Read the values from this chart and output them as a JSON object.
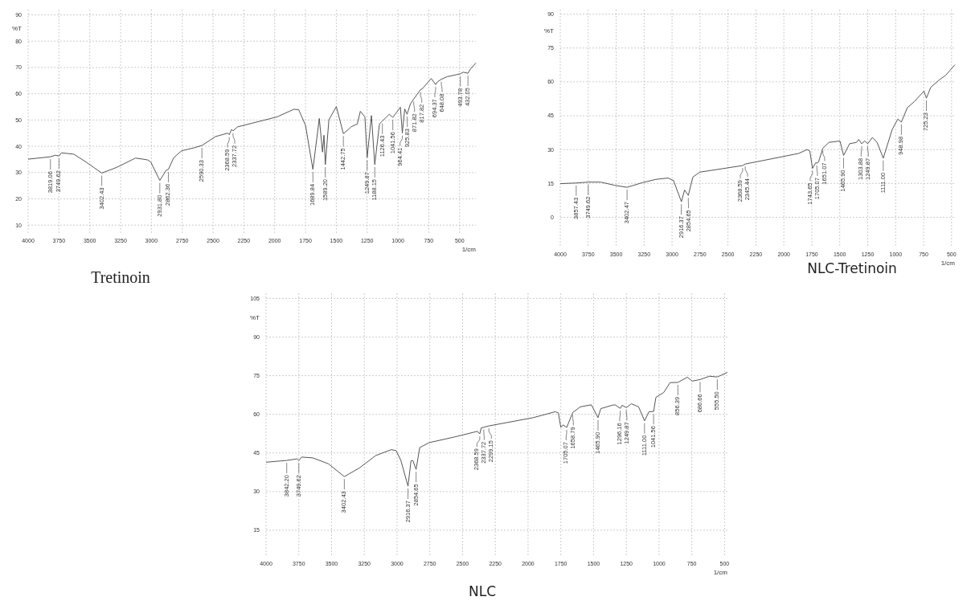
{
  "chart_data": [
    {
      "type": "line",
      "title": "Tretinoin",
      "xlabel": "1/cm",
      "ylabel": "%T",
      "xlim": [
        4000,
        368
      ],
      "xticks": [
        4000,
        3750,
        3500,
        3250,
        3000,
        2750,
        2500,
        2250,
        2000,
        1750,
        1500,
        1250,
        1000,
        750,
        500
      ],
      "ylim": [
        7,
        92
      ],
      "yticks": [
        10,
        20,
        30,
        40,
        50,
        60,
        70,
        80,
        90
      ],
      "grid": true,
      "series": [
        {
          "color": "#555555",
          "x": [
            4000,
            3819.06,
            3780,
            3749.62,
            3730,
            3630,
            3530,
            3402.43,
            3280,
            3130,
            3067,
            3030,
            3005,
            2931.8,
            2880,
            2862.36,
            2818,
            2755,
            2655,
            2590.33,
            2480,
            2380,
            2368.59,
            2350,
            2337.72,
            2300,
            1980,
            1843,
            1805,
            1750,
            1689.84,
            1638,
            1612,
            1600,
            1589.2,
            1560,
            1500,
            1442.75,
            1400,
            1380,
            1330,
            1305,
            1268,
            1249.87,
            1215,
            1188.15,
            1150,
            1126.43,
            1070,
            1041.56,
            1010,
            980,
            964.41,
            945,
            925.83,
            900,
            871.82,
            817.82,
            800,
            730,
            694.37,
            680,
            648.08,
            600,
            530,
            493.78,
            470,
            432.05,
            410,
            368
          ],
          "values": [
            35.1,
            36,
            36.6,
            36.3,
            37.5,
            37,
            34,
            29.8,
            32,
            35.5,
            35.1,
            34.8,
            34,
            27,
            30.9,
            31.2,
            35.7,
            38.3,
            39.4,
            40.3,
            43.7,
            45,
            44.4,
            46.4,
            45.9,
            47.4,
            51.2,
            54.1,
            53.9,
            48,
            31.2,
            50.6,
            37.8,
            44.2,
            33,
            50.1,
            55.1,
            44.8,
            46.5,
            47.4,
            48.5,
            53.3,
            51.2,
            35.7,
            51.7,
            33,
            48.5,
            49.6,
            52.2,
            51,
            53,
            54.9,
            45,
            54.2,
            52.2,
            56,
            58,
            61.5,
            62,
            65.8,
            63.5,
            64.5,
            65.5,
            66.5,
            67.2,
            67.6,
            68.2,
            67.8,
            69.5,
            71.7
          ]
        }
      ],
      "annotations": [
        {
          "text": "3819.06",
          "x": 3819.06,
          "y": 36
        },
        {
          "text": "3749.62",
          "x": 3749.62,
          "y": 36.3
        },
        {
          "text": "3402.43",
          "x": 3402.43,
          "y": 29.8
        },
        {
          "text": "2931.80",
          "x": 2931.8,
          "y": 27
        },
        {
          "text": "2862.36",
          "x": 2862.36,
          "y": 31.2
        },
        {
          "text": "2590.33",
          "x": 2590.33,
          "y": 40.3
        },
        {
          "text": "2368.59",
          "x": 2368.59,
          "y": 44.4
        },
        {
          "text": "2337.72",
          "x": 2337.72,
          "y": 45.9
        },
        {
          "text": "1689.84",
          "x": 1689.84,
          "y": 31.2
        },
        {
          "text": "1589.20",
          "x": 1589.2,
          "y": 33
        },
        {
          "text": "1442.75",
          "x": 1442.75,
          "y": 44.8
        },
        {
          "text": "1249.87",
          "x": 1249.87,
          "y": 35.7
        },
        {
          "text": "1188.15",
          "x": 1188.15,
          "y": 33
        },
        {
          "text": "1126.43",
          "x": 1126.43,
          "y": 49.6
        },
        {
          "text": "1041.56",
          "x": 1041.56,
          "y": 51
        },
        {
          "text": "964.41",
          "x": 964.41,
          "y": 45
        },
        {
          "text": "925.83",
          "x": 925.83,
          "y": 52.2
        },
        {
          "text": "871.82",
          "x": 871.82,
          "y": 58
        },
        {
          "text": "817.82",
          "x": 817.82,
          "y": 61.5
        },
        {
          "text": "694.37",
          "x": 694.37,
          "y": 63.5
        },
        {
          "text": "648.08",
          "x": 648.08,
          "y": 65.5
        },
        {
          "text": "493.78",
          "x": 493.78,
          "y": 67.6
        },
        {
          "text": "432.05",
          "x": 432.05,
          "y": 67.8
        }
      ]
    },
    {
      "type": "line",
      "title": "NLC-Tretinoin",
      "xlabel": "1/cm",
      "ylabel": "%T",
      "xlim": [
        4000,
        470
      ],
      "xticks": [
        4000,
        3750,
        3500,
        3250,
        3000,
        2750,
        2500,
        2250,
        2000,
        1750,
        1500,
        1250,
        1000,
        750,
        500
      ],
      "ylim": [
        -13,
        92
      ],
      "yticks": [
        0,
        15,
        30,
        45,
        60,
        75,
        90
      ],
      "grid": true,
      "series": [
        {
          "color": "#555555",
          "x": [
            4000,
            3857.43,
            3749.62,
            3638,
            3515,
            3402.47,
            3269,
            3146,
            3036,
            2987,
            2916.37,
            2888,
            2854.65,
            2814,
            2753,
            2372,
            2368.59,
            2360,
            2345.44,
            1867,
            1793,
            1768,
            1743.65,
            1715,
            1705.07,
            1690,
            1651.07,
            1597,
            1498,
            1465.9,
            1412,
            1350,
            1331,
            1303.88,
            1277,
            1249.87,
            1208,
            1166,
            1111,
            1030,
            981,
            948.98,
            895,
            834,
            747,
            725.23,
            686,
            612,
            551,
            470
          ],
          "values": [
            14.9,
            15.2,
            15.6,
            15.6,
            14.2,
            13.3,
            15.3,
            16.8,
            17.4,
            16.3,
            6.9,
            12.1,
            9.7,
            17.8,
            20,
            22.9,
            22.9,
            23.2,
            23.6,
            28.3,
            30,
            29.4,
            21.7,
            24.2,
            24,
            24.5,
            30.6,
            33.2,
            33.8,
            27.4,
            32.6,
            33.2,
            34.5,
            32.6,
            33.8,
            32.6,
            35.4,
            33.2,
            26.2,
            39,
            43.5,
            42.2,
            48.6,
            51.2,
            55.9,
            52.8,
            57.6,
            60.8,
            63,
            67.6
          ]
        }
      ],
      "annotations": [
        {
          "text": "3857.43",
          "x": 3857.43,
          "y": 15.2
        },
        {
          "text": "3749.62",
          "x": 3749.62,
          "y": 15.6
        },
        {
          "text": "3402.47",
          "x": 3402.47,
          "y": 13.3
        },
        {
          "text": "2916.37",
          "x": 2916.37,
          "y": 6.9
        },
        {
          "text": "2854.65",
          "x": 2854.65,
          "y": 9.7
        },
        {
          "text": "2368.59",
          "x": 2368.59,
          "y": 22.9
        },
        {
          "text": "2345.44",
          "x": 2345.44,
          "y": 23.6
        },
        {
          "text": "1743.65",
          "x": 1743.65,
          "y": 21.7
        },
        {
          "text": "1705.07",
          "x": 1705.07,
          "y": 24
        },
        {
          "text": "1651.07",
          "x": 1651.07,
          "y": 30.6
        },
        {
          "text": "1465.90",
          "x": 1465.9,
          "y": 27.4
        },
        {
          "text": "1303.88",
          "x": 1303.88,
          "y": 32.6
        },
        {
          "text": "1249.87",
          "x": 1249.87,
          "y": 32.6
        },
        {
          "text": "1111.00",
          "x": 1111,
          "y": 26.2
        },
        {
          "text": "948.98",
          "x": 948.98,
          "y": 42.2
        },
        {
          "text": "725.23",
          "x": 725.23,
          "y": 52.8
        }
      ]
    },
    {
      "type": "line",
      "title": "NLC",
      "xlabel": "1/cm",
      "ylabel": "%T",
      "xlim": [
        4000,
        478
      ],
      "xticks": [
        4000,
        3750,
        3500,
        3250,
        3000,
        2750,
        2500,
        2250,
        2000,
        1750,
        1500,
        1250,
        1000,
        750,
        500
      ],
      "ylim": [
        5,
        107
      ],
      "yticks": [
        15,
        30,
        45,
        60,
        75,
        90,
        105
      ],
      "grid": true,
      "series": [
        {
          "color": "#555555",
          "x": [
            4000,
            3842.2,
            3764,
            3749.62,
            3728,
            3644,
            3524,
            3402.43,
            3284,
            3163,
            3043,
            3007,
            2971,
            2916.37,
            2894,
            2880,
            2854.65,
            2827,
            2755,
            2562,
            2387,
            2368.59,
            2358,
            2337.72,
            2299.15,
            1961,
            1793,
            1769,
            1750,
            1733,
            1705.07,
            1658.79,
            1601,
            1517,
            1465.9,
            1445,
            1360,
            1336,
            1296.16,
            1283,
            1249.87,
            1211,
            1156,
            1111,
            1077,
            1041.56,
            1024,
            964,
            916,
            856.39,
            784,
            747,
            686.66,
            615,
            555.5,
            478
          ],
          "values": [
            41.4,
            42.1,
            42.7,
            42.1,
            43.4,
            43.1,
            40.8,
            35.8,
            39.3,
            44,
            46.3,
            45.9,
            42.1,
            32.1,
            41.9,
            42.1,
            38.6,
            47.1,
            49,
            51.2,
            53.4,
            52.4,
            54.7,
            55,
            55.5,
            58.7,
            61,
            60.6,
            54.9,
            55.9,
            54.9,
            60.7,
            62.9,
            63.7,
            58.7,
            62.2,
            63.5,
            63.7,
            62.3,
            63.5,
            62.6,
            64.1,
            62.9,
            57.5,
            61,
            61.1,
            66.6,
            68.5,
            72.3,
            72.4,
            74.4,
            72.9,
            73.5,
            74.8,
            74.5,
            76.3
          ]
        }
      ],
      "annotations": [
        {
          "text": "3842.20",
          "x": 3842.2,
          "y": 42.1
        },
        {
          "text": "3749.62",
          "x": 3749.62,
          "y": 42.1
        },
        {
          "text": "3402.43",
          "x": 3402.43,
          "y": 35.8
        },
        {
          "text": "2916.37",
          "x": 2916.37,
          "y": 32.1
        },
        {
          "text": "2854.65",
          "x": 2854.65,
          "y": 38.6
        },
        {
          "text": "2368.59",
          "x": 2368.59,
          "y": 52.4
        },
        {
          "text": "2337.72",
          "x": 2337.72,
          "y": 55
        },
        {
          "text": "2299.15",
          "x": 2299.15,
          "y": 55.5
        },
        {
          "text": "1705.07",
          "x": 1705.07,
          "y": 54.9
        },
        {
          "text": "1658.79",
          "x": 1658.79,
          "y": 60.7
        },
        {
          "text": "1465.90",
          "x": 1465.9,
          "y": 58.7
        },
        {
          "text": "1296.16",
          "x": 1296.16,
          "y": 62.3
        },
        {
          "text": "1249.87",
          "x": 1249.87,
          "y": 62.6
        },
        {
          "text": "1111.00",
          "x": 1111,
          "y": 57.5
        },
        {
          "text": "1041.56",
          "x": 1041.56,
          "y": 61.1
        },
        {
          "text": "856.39",
          "x": 856.39,
          "y": 72.4
        },
        {
          "text": "686.66",
          "x": 686.66,
          "y": 73.5
        },
        {
          "text": "555.50",
          "x": 555.5,
          "y": 74.5
        }
      ]
    }
  ]
}
